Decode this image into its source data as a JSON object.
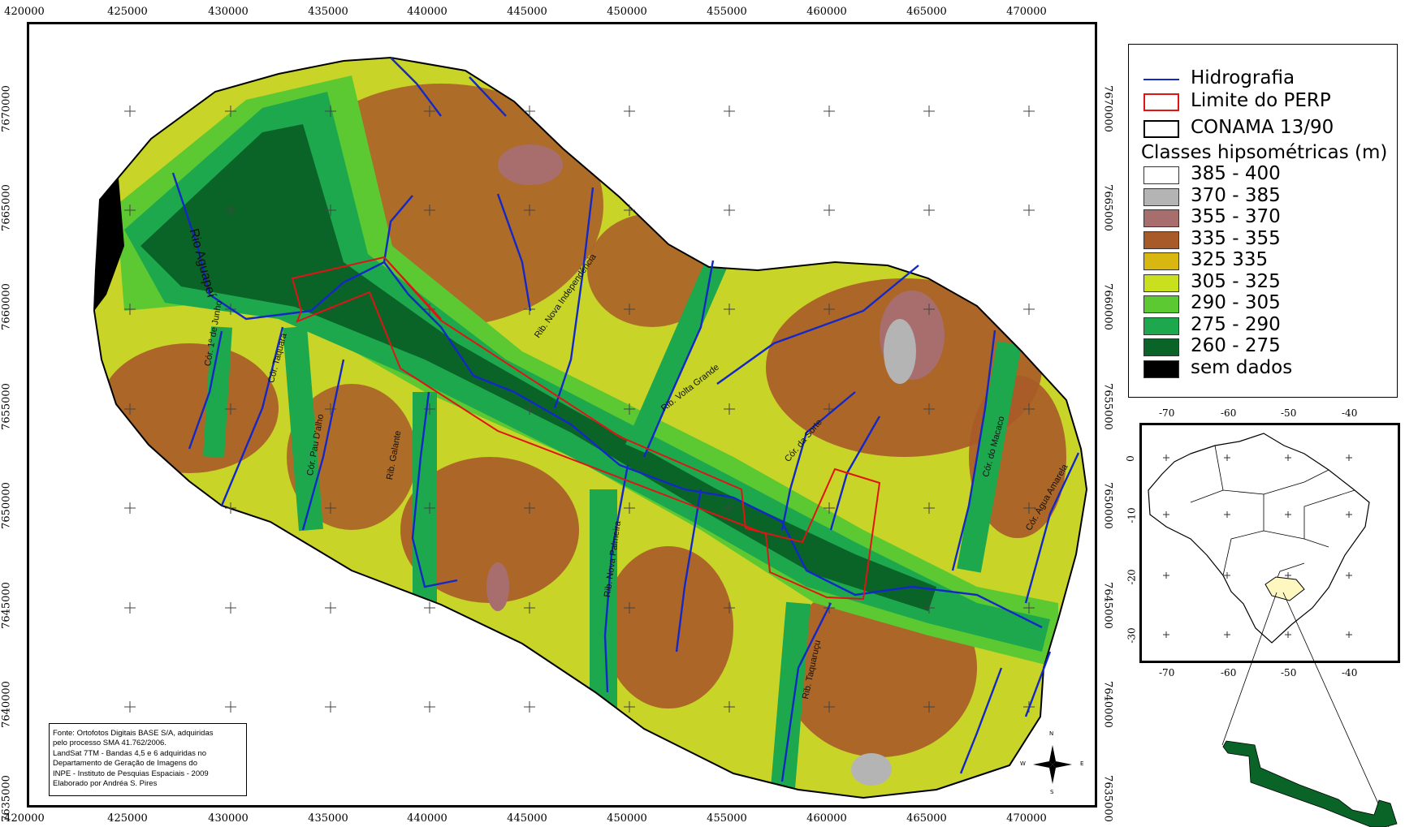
{
  "axes": {
    "top_x": [
      "420000",
      "425000",
      "430000",
      "435000",
      "440000",
      "445000",
      "450000",
      "455000",
      "460000",
      "465000",
      "470000"
    ],
    "bottom_x": [
      "420000",
      "425000",
      "430000",
      "435000",
      "440000",
      "445000",
      "450000",
      "455000",
      "460000",
      "465000",
      "470000"
    ],
    "left_y": [
      "7670000",
      "7665000",
      "7660000",
      "7655000",
      "7650000",
      "7645000",
      "7640000",
      "7635000"
    ],
    "right_y": [
      "7670000",
      "7665000",
      "7660000",
      "7655000",
      "7650000",
      "7645000",
      "7640000",
      "7635000"
    ]
  },
  "legend": {
    "hidrografia": "Hidrografia",
    "limite": "Limite do PERP",
    "conama": "CONAMA 13/90",
    "classes_title": "Classes hipsométricas (m)",
    "classes": [
      {
        "label": "385 - 400",
        "color": "#ffffff"
      },
      {
        "label": "370 - 385",
        "color": "#b4b4b4"
      },
      {
        "label": "355 - 370",
        "color": "#a86e6e"
      },
      {
        "label": "335 - 355",
        "color": "#a85a28"
      },
      {
        "label": "325 335",
        "color": "#d8b810"
      },
      {
        "label": "305 - 325",
        "color": "#c8e01e"
      },
      {
        "label": "290 - 305",
        "color": "#5cc832"
      },
      {
        "label": "275 - 290",
        "color": "#1ea84e"
      },
      {
        "label": "260 - 275",
        "color": "#0a6428"
      },
      {
        "label": "sem dados",
        "color": "#000000"
      }
    ],
    "colors": {
      "hidro": "#1428c8",
      "limite": "#e01414",
      "conama": "#000000"
    }
  },
  "inset": {
    "x_ticks": [
      "-70",
      "-60",
      "-50",
      "-40"
    ],
    "y_ticks": [
      "0",
      "-10",
      "-20",
      "-30"
    ]
  },
  "rivers": {
    "aguapei": "Rio Aguapeí",
    "r1": "Cór. 1º de Junho",
    "r2": "Cór. Taquara",
    "r3": "Cór. Pau D'alho",
    "r4": "Rib. Galante",
    "r5": "Rib. Nova Independência",
    "r6": "Rib. Volta Grande",
    "r7": "Rib. Nova Palmeira",
    "r8": "Cór. da Sorte",
    "r9": "Cór. do Macaco",
    "r10": "Cór. Água Amarela",
    "r11": "Rib. Taquaruçu"
  },
  "source": {
    "line1": "Fonte: Ortofotos Digitais BASE S/A, adquiridas",
    "line2": "pelo processo SMA 41.762/2006.",
    "line3": "LandSat 7TM - Bandas 4,5 e 6 adquiridas no",
    "line4": "Departamento de Geração de Imagens do",
    "line5": "INPE - Instituto de Pesquias Espaciais - 2009",
    "line6": "Elaborado por Andréa S. Pires"
  },
  "compass": {
    "n": "N",
    "s": "S",
    "e": "E",
    "w": "W"
  }
}
